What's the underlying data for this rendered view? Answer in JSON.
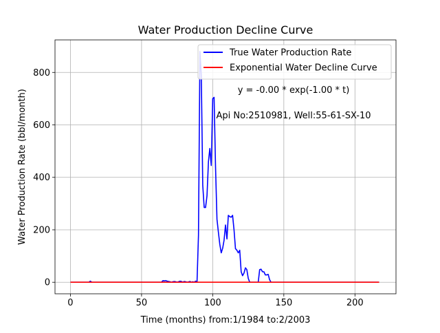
{
  "chart_data": {
    "type": "line",
    "title": "Water Production Decline Curve",
    "xlabel": "Time (months) from:1/1984 to:2/2003",
    "ylabel": "Water Production Rate (bbl/month)",
    "xlim": [
      -10.85,
      228.85
    ],
    "ylim": [
      -44,
      924
    ],
    "xticks": [
      0,
      50,
      100,
      150,
      200
    ],
    "yticks": [
      0,
      200,
      400,
      600,
      800
    ],
    "grid": true,
    "legend_position": "top-right",
    "annotations": [
      "y = -0.00 * exp(-1.00 * t)",
      "Api No:2510981, Well:55-61-SX-10"
    ],
    "series": [
      {
        "name": "True Water Production Rate",
        "color": "#0000ff",
        "x": [
          0,
          13,
          14,
          15,
          64,
          65,
          66,
          67,
          68,
          69,
          70,
          71,
          72,
          73,
          74,
          75,
          76,
          77,
          78,
          79,
          80,
          81,
          82,
          83,
          84,
          85,
          86,
          87,
          88,
          89,
          90,
          91,
          92,
          93,
          94,
          95,
          96,
          97,
          98,
          99,
          100,
          101,
          102,
          103,
          104,
          105,
          106,
          107,
          108,
          109,
          110,
          111,
          112,
          113,
          114,
          115,
          116,
          117,
          118,
          119,
          120,
          121,
          122,
          123,
          124,
          125,
          126,
          127,
          128,
          129,
          130,
          131,
          132,
          133,
          134,
          135,
          136,
          137,
          138,
          139,
          140,
          141,
          142,
          143,
          144,
          217
        ],
        "y": [
          0,
          0,
          4,
          0,
          0,
          6,
          5,
          6,
          4,
          3,
          2,
          0,
          2,
          3,
          2,
          0,
          2,
          4,
          3,
          0,
          3,
          2,
          0,
          1,
          3,
          0,
          2,
          0,
          4,
          3,
          180,
          880,
          790,
          370,
          285,
          285,
          330,
          460,
          510,
          445,
          700,
          705,
          440,
          240,
          190,
          145,
          112,
          130,
          160,
          218,
          165,
          255,
          250,
          248,
          255,
          200,
          128,
          122,
          112,
          122,
          40,
          25,
          35,
          55,
          48,
          15,
          0,
          0,
          0,
          0,
          0,
          0,
          0,
          48,
          50,
          40,
          40,
          28,
          28,
          30,
          10,
          0,
          0,
          0,
          0,
          0
        ]
      },
      {
        "name": "Exponential Water Decline Curve",
        "color": "#ff0000",
        "x": [
          0,
          217
        ],
        "y": [
          0,
          0
        ]
      }
    ]
  }
}
